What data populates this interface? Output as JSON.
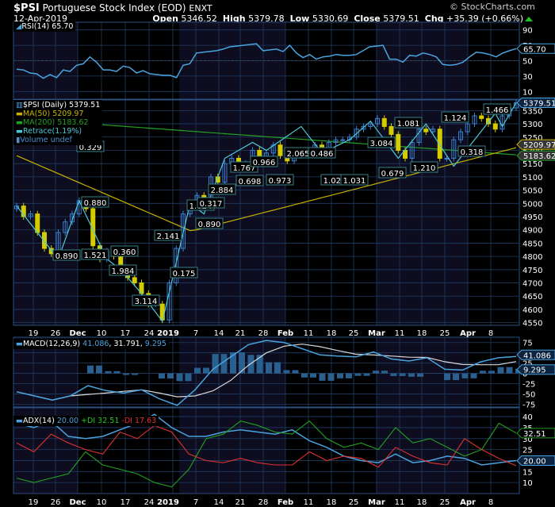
{
  "header": {
    "symbol": "$PSI",
    "name": "Portuguese Stock Index (EOD)",
    "exchange": "ENXT",
    "date": "12-Apr-2019",
    "copyright": "© StockCharts.com",
    "open_label": "Open",
    "open": "5346.52",
    "high_label": "High",
    "high": "5379.78",
    "low_label": "Low",
    "low": "5330.69",
    "close_label": "Close",
    "close": "5379.51",
    "chg_label": "Chg",
    "chg": "+35.39 (+0.66%)"
  },
  "rsi": {
    "legend": "RSI(14) 65.70",
    "value": "65.70"
  },
  "price": {
    "legend_main": "$PSI (Daily) 5379.51",
    "legend_ma50": "MA(50) 5209.97",
    "legend_ma200": "MA(200) 5183.62",
    "legend_retrace": "Retrace(1.19%)",
    "legend_volume": "Volume undef",
    "last": "5379.51",
    "ma50": "5209.97",
    "ma200": "5183.62"
  },
  "macd": {
    "legend_name": "MACD(12,26,9)",
    "v1": "41.086",
    "v2": "31.791",
    "v3": "9.295"
  },
  "adx": {
    "legend_name": "ADX(14)",
    "adx": "20.00",
    "pdi": "+DI 32.51",
    "mdi": "-DI 17.63",
    "pdi_val": "32.51",
    "mdi_val": "17.63"
  },
  "x_labels": [
    "19",
    "26",
    "Dec",
    "10",
    "17",
    "24",
    "2019",
    "7",
    "14",
    "21",
    "28",
    "Feb",
    "11",
    "18",
    "25",
    "Mar",
    "11",
    "18",
    "25",
    "Apr",
    "8"
  ],
  "colors": {
    "bg": "#000000",
    "panel": "#0d0d1f",
    "grid": "#1f3c64",
    "rsi": "#4aa3df",
    "ma50": "#c8b400",
    "ma200": "#22a122",
    "retrace": "#4ec9d6",
    "up": "#3a7fd0",
    "down": "#d4cc00",
    "signal": "#d8d8d8",
    "pdi": "#22a122",
    "mdi": "#e03030"
  },
  "chart_data": [
    {
      "type": "line",
      "title": "RSI(14)",
      "ylim": [
        0,
        100
      ],
      "yticks": [
        10,
        30,
        50,
        70,
        90
      ],
      "series": [
        {
          "name": "RSI(14)",
          "values": [
            39,
            38,
            34,
            33,
            27,
            32,
            28,
            38,
            36,
            44,
            46,
            55,
            48,
            38,
            38,
            36,
            43,
            41,
            34,
            37,
            33,
            32,
            31,
            31,
            28,
            44,
            46,
            60,
            61,
            62,
            63,
            65,
            68,
            69,
            70,
            71,
            72,
            63,
            64,
            65,
            62,
            70,
            60,
            54,
            58,
            52,
            55,
            56,
            58,
            57,
            57,
            58,
            63,
            68,
            69,
            70,
            52,
            52,
            48,
            57,
            56,
            60,
            58,
            55,
            45,
            44,
            45,
            48,
            55,
            61,
            60,
            58,
            55,
            60,
            63,
            65.7
          ]
        }
      ]
    },
    {
      "type": "candlestick",
      "title": "$PSI (Daily)",
      "ylim": [
        4540,
        5390
      ],
      "yticks": [
        4550,
        4600,
        4650,
        4700,
        4750,
        4800,
        4850,
        4900,
        4950,
        5000,
        5050,
        5100,
        5150,
        5200,
        5250,
        5300,
        5350
      ],
      "last_close": 5379.51,
      "ma50_last": 5209.97,
      "ma200_last": 5183.62,
      "retrace_labels": [
        "0.890",
        "0.329",
        "0.880",
        "1.521",
        "0.360",
        "1.984",
        "3.114",
        "2.141",
        "0.175",
        "1.024",
        "0.890",
        "0.317",
        "2.884",
        "1.767",
        "0.698",
        "0.966",
        "0.973",
        "2.065",
        "0.486",
        "1.026",
        "1.031",
        "3.084",
        "0.679",
        "1.081",
        "1.210",
        "1.124",
        "0.318",
        "1.466"
      ],
      "approx_closes": [
        4990,
        4950,
        4960,
        4890,
        4830,
        4810,
        4890,
        4930,
        4960,
        5010,
        4980,
        4840,
        4790,
        4820,
        4800,
        4740,
        4720,
        4700,
        4660,
        4620,
        4620,
        4560,
        4700,
        4830,
        4960,
        5000,
        5030,
        5010,
        5100,
        5080,
        5150,
        5170,
        5130,
        5150,
        5200,
        5170,
        5190,
        5220,
        5180,
        5160,
        5180,
        5190,
        5200,
        5220,
        5210,
        5230,
        5240,
        5240,
        5250,
        5280,
        5290,
        5300,
        5320,
        5290,
        5260,
        5200,
        5170,
        5230,
        5280,
        5270,
        5280,
        5170,
        5170,
        5240,
        5270,
        5300,
        5330,
        5320,
        5300,
        5280,
        5330,
        5360,
        5379.51
      ]
    },
    {
      "type": "line",
      "title": "MACD(12,26,9)",
      "ylim": [
        -80,
        80
      ],
      "yticks": [
        -75,
        -50,
        -25,
        0,
        25,
        50,
        75
      ],
      "series": [
        {
          "name": "MACD",
          "last": 41.086
        },
        {
          "name": "Signal",
          "last": 31.791
        },
        {
          "name": "Histogram",
          "last": 9.295
        }
      ]
    },
    {
      "type": "line",
      "title": "ADX(14)",
      "ylim": [
        5,
        43
      ],
      "yticks": [
        10,
        15,
        20,
        25,
        30,
        35,
        40
      ],
      "series": [
        {
          "name": "ADX",
          "last": 20.0
        },
        {
          "name": "+DI",
          "last": 32.51
        },
        {
          "name": "-DI",
          "last": 17.63
        }
      ]
    }
  ]
}
